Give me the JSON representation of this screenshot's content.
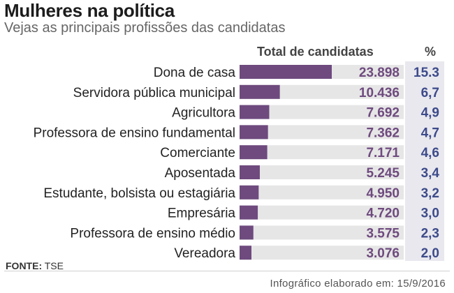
{
  "title": "Mulheres na política",
  "subtitle": "Vejas as principais profissões das candidatas",
  "columns": {
    "total": "Total de candidatas",
    "pct": "%"
  },
  "source_label": "FONTE:",
  "source_value": "TSE",
  "footer": "Infográfico elaborado em: 15/9/2016",
  "colors": {
    "bar": "#6e4a7e",
    "track": "#e6e6e6",
    "value_text": "#6e4a7e",
    "pct_text": "#3d4a8a"
  },
  "chart_data": {
    "type": "bar",
    "orientation": "horizontal",
    "categories": [
      "Dona de casa",
      "Servidora pública municipal",
      "Agricultora",
      "Professora de ensino fundamental",
      "Comerciante",
      "Aposentada",
      "Estudante, bolsista ou estagiária",
      "Empresária",
      "Professora de ensino médio",
      "Vereadora"
    ],
    "values": [
      23898,
      10436,
      7692,
      7362,
      7171,
      5245,
      4950,
      4720,
      3575,
      3076
    ],
    "value_labels": [
      "23.898",
      "10.436",
      "7.692",
      "7.362",
      "7.171",
      "5.245",
      "4.950",
      "4.720",
      "3.575",
      "3.076"
    ],
    "percent_labels": [
      "15.3",
      "6,7",
      "4,9",
      "4,7",
      "4,6",
      "3,4",
      "3,2",
      "3,0",
      "2,3",
      "2,0"
    ]
  }
}
